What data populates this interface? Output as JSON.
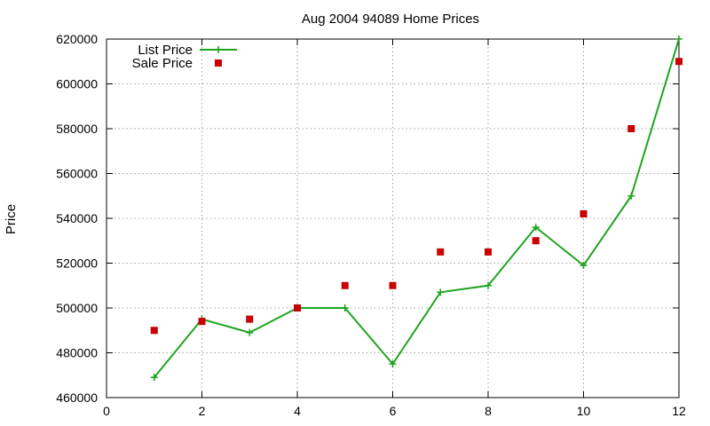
{
  "chart_data": {
    "type": "line",
    "title": "Aug 2004 94089 Home Prices",
    "xlabel": "",
    "ylabel": "Price",
    "xlim": [
      0,
      12
    ],
    "ylim": [
      460000,
      620000
    ],
    "x_ticks": [
      0,
      2,
      4,
      6,
      8,
      10,
      12
    ],
    "y_ticks": [
      460000,
      480000,
      500000,
      520000,
      540000,
      560000,
      580000,
      600000,
      620000
    ],
    "grid": true,
    "legend_position": "top-left",
    "series": [
      {
        "name": "List Price",
        "style": "lines+points",
        "marker": "plus",
        "color": "#1fa41f",
        "points": [
          {
            "x": 1,
            "y": 469000
          },
          {
            "x": 2,
            "y": 495000
          },
          {
            "x": 3,
            "y": 489000
          },
          {
            "x": 4,
            "y": 500000
          },
          {
            "x": 5,
            "y": 500000
          },
          {
            "x": 6,
            "y": 475000
          },
          {
            "x": 7,
            "y": 507000
          },
          {
            "x": 8,
            "y": 510000
          },
          {
            "x": 9,
            "y": 536000
          },
          {
            "x": 10,
            "y": 519000
          },
          {
            "x": 11,
            "y": 550000
          },
          {
            "x": 12,
            "y": 620000
          }
        ]
      },
      {
        "name": "Sale Price",
        "style": "points",
        "marker": "square",
        "color": "#c80000",
        "points": [
          {
            "x": 1,
            "y": 490000
          },
          {
            "x": 2,
            "y": 494000
          },
          {
            "x": 3,
            "y": 495000
          },
          {
            "x": 4,
            "y": 500000
          },
          {
            "x": 5,
            "y": 510000
          },
          {
            "x": 6,
            "y": 510000
          },
          {
            "x": 7,
            "y": 525000
          },
          {
            "x": 8,
            "y": 525000
          },
          {
            "x": 9,
            "y": 530000
          },
          {
            "x": 10,
            "y": 542000
          },
          {
            "x": 11,
            "y": 580000
          },
          {
            "x": 12,
            "y": 610000
          }
        ]
      }
    ]
  }
}
